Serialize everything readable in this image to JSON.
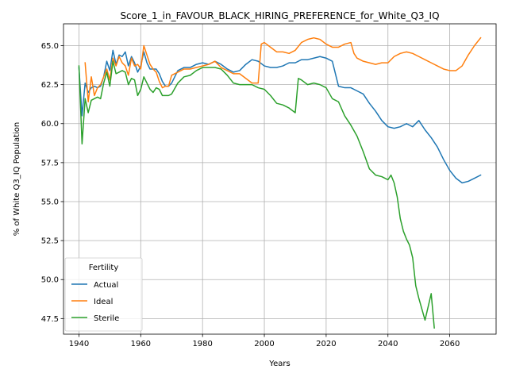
{
  "chart_data": {
    "type": "line",
    "title": "Score_1_in_FAVOUR_BLACK_HIRING_PREFERENCE_for_White_Q3_IQ",
    "xlabel": "Years",
    "ylabel": "% of White Q3_IQ Population",
    "xlim": [
      1935,
      2075
    ],
    "ylim": [
      46.5,
      66.4
    ],
    "xticks": [
      1940,
      1960,
      1980,
      2000,
      2020,
      2040,
      2060
    ],
    "yticks": [
      47.5,
      50.0,
      52.5,
      55.0,
      57.5,
      60.0,
      62.5,
      65.0
    ],
    "grid": true,
    "legend": {
      "title": "Fertility",
      "position": "lower-left"
    },
    "series": [
      {
        "name": "Actual",
        "color": "#1f77b4",
        "x": [
          1940,
          1941,
          1942,
          1943,
          1944,
          1945,
          1946,
          1947,
          1948,
          1949,
          1950,
          1951,
          1952,
          1953,
          1954,
          1955,
          1956,
          1957,
          1958,
          1959,
          1960,
          1961,
          1962,
          1963,
          1964,
          1965,
          1966,
          1967,
          1968,
          1969,
          1970,
          1972,
          1974,
          1976,
          1978,
          1980,
          1982,
          1984,
          1986,
          1988,
          1990,
          1992,
          1994,
          1996,
          1998,
          2000,
          2002,
          2004,
          2006,
          2008,
          2010,
          2012,
          2014,
          2016,
          2018,
          2020,
          2022,
          2024,
          2026,
          2028,
          2030,
          2032,
          2034,
          2036,
          2038,
          2040,
          2042,
          2044,
          2046,
          2048,
          2050,
          2052,
          2054,
          2056,
          2058,
          2060,
          2062,
          2064,
          2066,
          2068,
          2070
        ],
        "values": [
          63.6,
          60.5,
          62.6,
          62.0,
          62.3,
          62.4,
          62.3,
          62.4,
          63.0,
          64.0,
          63.4,
          64.7,
          63.8,
          64.4,
          64.3,
          64.6,
          63.7,
          64.3,
          63.9,
          63.3,
          63.7,
          64.6,
          63.9,
          63.5,
          63.5,
          63.5,
          63.2,
          62.7,
          62.4,
          62.4,
          62.6,
          63.4,
          63.6,
          63.6,
          63.8,
          63.9,
          63.8,
          64.0,
          63.8,
          63.5,
          63.3,
          63.4,
          63.8,
          64.1,
          64.0,
          63.7,
          63.6,
          63.6,
          63.7,
          63.9,
          63.9,
          64.1,
          64.1,
          64.2,
          64.3,
          64.2,
          64.0,
          62.4,
          62.3,
          62.3,
          62.1,
          61.9,
          61.3,
          60.8,
          60.2,
          59.8,
          59.7,
          59.8,
          60.0,
          59.8,
          60.2,
          59.6,
          59.1,
          58.5,
          57.7,
          57.0,
          56.5,
          56.2,
          56.3,
          56.5,
          56.7
        ]
      },
      {
        "name": "Ideal",
        "color": "#ff7f0e",
        "x": [
          1942,
          1943,
          1944,
          1945,
          1946,
          1947,
          1948,
          1949,
          1950,
          1951,
          1952,
          1953,
          1954,
          1955,
          1956,
          1957,
          1958,
          1959,
          1960,
          1961,
          1962,
          1963,
          1964,
          1965,
          1966,
          1967,
          1968,
          1969,
          1970,
          1972,
          1974,
          1976,
          1978,
          1980,
          1982,
          1984,
          1986,
          1988,
          1990,
          1992,
          1994,
          1996,
          1998,
          1999,
          2000,
          2002,
          2004,
          2006,
          2008,
          2010,
          2012,
          2014,
          2016,
          2018,
          2020,
          2022,
          2024,
          2026,
          2028,
          2029,
          2030,
          2032,
          2034,
          2036,
          2038,
          2040,
          2042,
          2044,
          2046,
          2048,
          2050,
          2052,
          2054,
          2056,
          2058,
          2060,
          2062,
          2064,
          2066,
          2068,
          2070
        ],
        "values": [
          63.9,
          61.4,
          63.0,
          61.8,
          62.3,
          62.5,
          63.0,
          63.5,
          62.8,
          64.2,
          63.7,
          64.3,
          63.9,
          63.7,
          63.1,
          64.2,
          63.7,
          63.8,
          63.5,
          65.0,
          64.4,
          63.8,
          63.5,
          63.3,
          62.7,
          62.3,
          62.4,
          62.4,
          63.1,
          63.3,
          63.5,
          63.5,
          63.6,
          63.7,
          63.8,
          64.0,
          63.6,
          63.4,
          63.2,
          63.2,
          62.9,
          62.6,
          62.6,
          65.1,
          65.2,
          64.9,
          64.6,
          64.6,
          64.5,
          64.7,
          65.2,
          65.4,
          65.5,
          65.4,
          65.1,
          64.9,
          64.9,
          65.1,
          65.2,
          64.5,
          64.2,
          64.0,
          63.9,
          63.8,
          63.9,
          63.9,
          64.3,
          64.5,
          64.6,
          64.5,
          64.3,
          64.1,
          63.9,
          63.7,
          63.5,
          63.4,
          63.4,
          63.7,
          64.4,
          65.0,
          65.5
        ]
      },
      {
        "name": "Sterile",
        "color": "#2ca02c",
        "x": [
          1940,
          1941,
          1942,
          1943,
          1944,
          1945,
          1946,
          1947,
          1948,
          1949,
          1950,
          1951,
          1952,
          1953,
          1954,
          1955,
          1956,
          1957,
          1958,
          1959,
          1960,
          1961,
          1962,
          1963,
          1964,
          1965,
          1966,
          1967,
          1968,
          1969,
          1970,
          1972,
          1974,
          1976,
          1978,
          1980,
          1982,
          1984,
          1986,
          1988,
          1990,
          1992,
          1994,
          1996,
          1998,
          2000,
          2002,
          2004,
          2006,
          2008,
          2010,
          2011,
          2012,
          2014,
          2016,
          2018,
          2020,
          2022,
          2024,
          2026,
          2028,
          2030,
          2032,
          2034,
          2036,
          2038,
          2040,
          2041,
          2042,
          2043,
          2044,
          2045,
          2046,
          2047,
          2048,
          2049,
          2050,
          2052,
          2054,
          2055
        ],
        "values": [
          63.7,
          58.7,
          61.6,
          60.7,
          61.5,
          61.6,
          61.7,
          61.6,
          62.6,
          63.3,
          62.4,
          64.0,
          63.2,
          63.3,
          63.4,
          63.3,
          62.5,
          62.9,
          62.8,
          61.8,
          62.2,
          63.0,
          62.6,
          62.2,
          62.0,
          62.3,
          62.2,
          61.8,
          61.8,
          61.8,
          61.9,
          62.6,
          63.0,
          63.1,
          63.4,
          63.6,
          63.6,
          63.6,
          63.5,
          63.1,
          62.6,
          62.5,
          62.5,
          62.5,
          62.3,
          62.2,
          61.8,
          61.3,
          61.2,
          61.0,
          60.7,
          62.9,
          62.8,
          62.5,
          62.6,
          62.5,
          62.3,
          61.6,
          61.4,
          60.5,
          59.9,
          59.2,
          58.2,
          57.1,
          56.7,
          56.6,
          56.4,
          56.7,
          56.2,
          55.3,
          53.9,
          53.1,
          52.6,
          52.2,
          51.4,
          49.6,
          48.8,
          47.4,
          49.1,
          46.9
        ]
      }
    ]
  }
}
